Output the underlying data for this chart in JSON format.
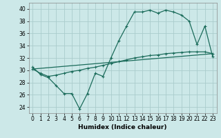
{
  "xlabel": "Humidex (Indice chaleur)",
  "bg_color": "#cce8e8",
  "line_color": "#1a6b5a",
  "grid_color": "#aacccc",
  "xlim": [
    -0.5,
    23.5
  ],
  "ylim": [
    23.0,
    41.0
  ],
  "yticks": [
    24,
    26,
    28,
    30,
    32,
    34,
    36,
    38,
    40
  ],
  "xticks": [
    0,
    1,
    2,
    3,
    4,
    5,
    6,
    7,
    8,
    9,
    10,
    11,
    12,
    13,
    14,
    15,
    16,
    17,
    18,
    19,
    20,
    21,
    22,
    23
  ],
  "series1_x": [
    0,
    1,
    2,
    3,
    4,
    5,
    6,
    7,
    8,
    9,
    10,
    11,
    12,
    13,
    14,
    15,
    16,
    17,
    18,
    19,
    20,
    21,
    22,
    23
  ],
  "series1_y": [
    30.5,
    29.3,
    28.8,
    27.5,
    26.2,
    26.2,
    23.7,
    26.2,
    29.5,
    29.0,
    32.0,
    34.8,
    37.2,
    39.5,
    39.5,
    39.8,
    39.3,
    39.8,
    39.5,
    39.0,
    38.0,
    34.2,
    37.2,
    32.2
  ],
  "series2_x": [
    0,
    1,
    2,
    3,
    4,
    5,
    6,
    7,
    8,
    9,
    10,
    11,
    12,
    13,
    14,
    15,
    16,
    17,
    18,
    19,
    20,
    21,
    22,
    23
  ],
  "series2_y": [
    30.2,
    29.5,
    29.0,
    29.2,
    29.5,
    29.8,
    30.0,
    30.3,
    30.5,
    30.8,
    31.1,
    31.4,
    31.7,
    32.0,
    32.2,
    32.4,
    32.5,
    32.7,
    32.8,
    32.9,
    33.0,
    33.0,
    33.0,
    32.7
  ],
  "series3_x": [
    0,
    23
  ],
  "series3_y": [
    30.2,
    32.7
  ],
  "tick_fontsize": 5.5,
  "xlabel_fontsize": 6.5
}
